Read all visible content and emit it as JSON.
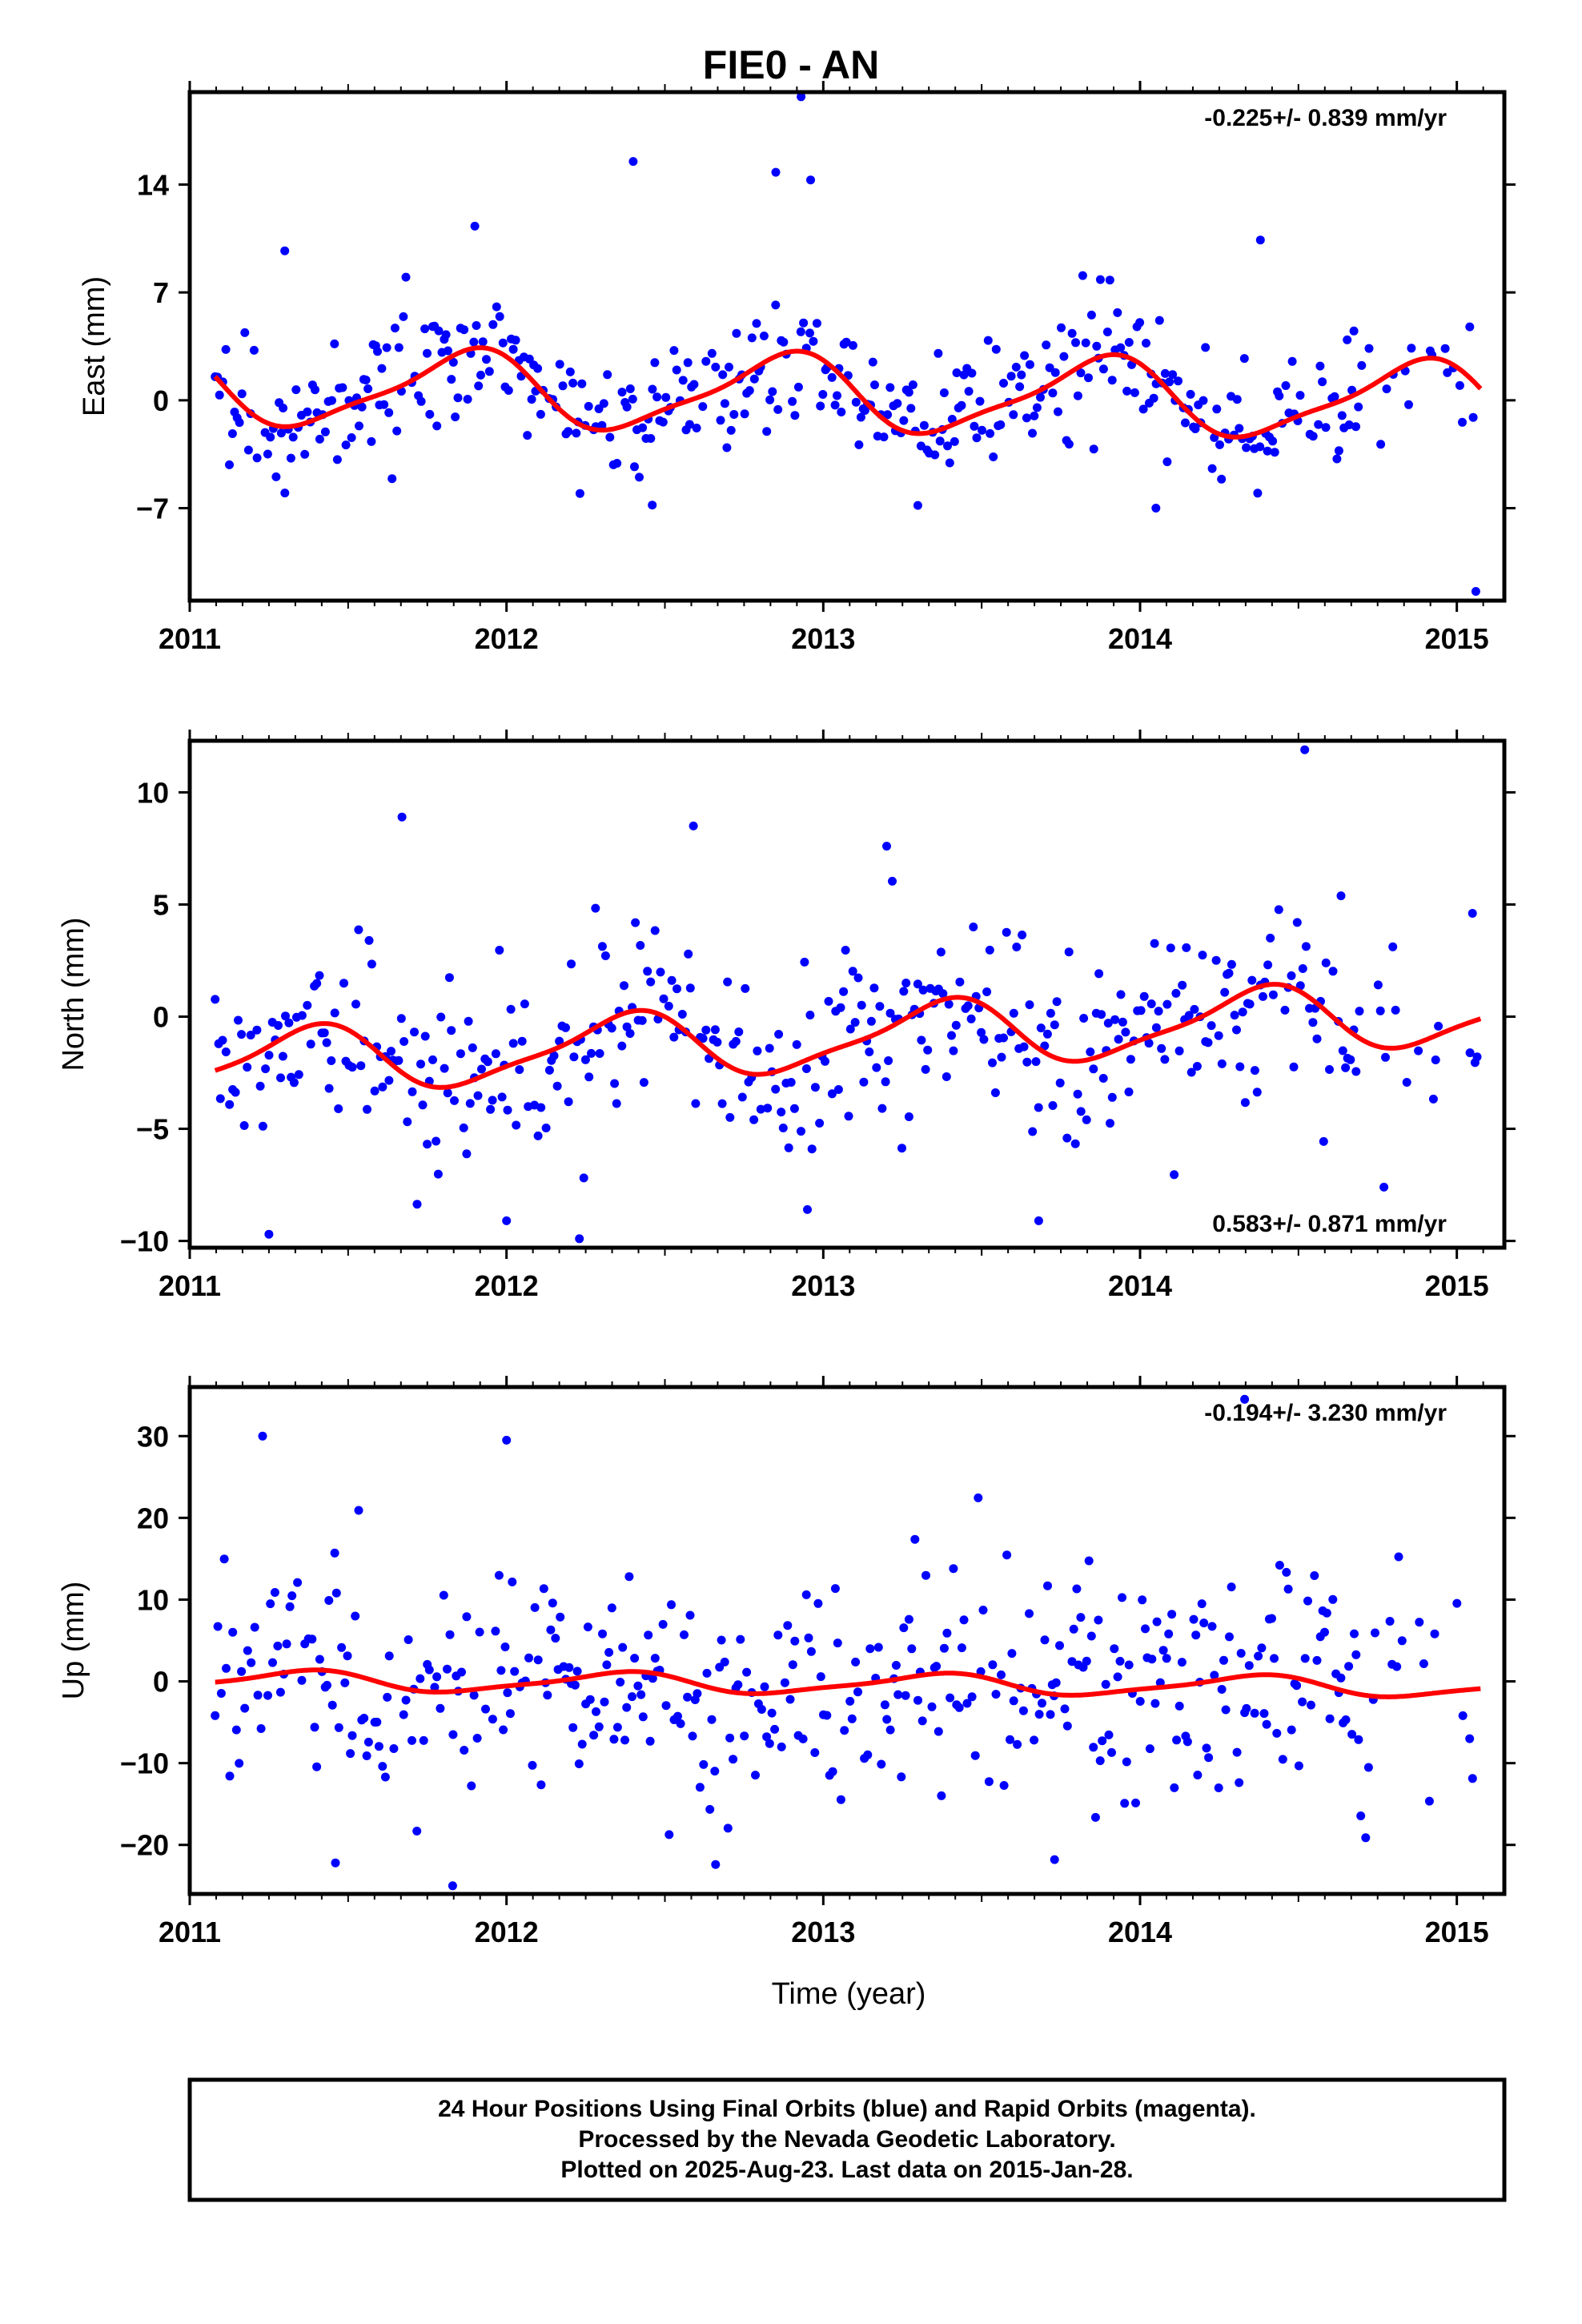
{
  "title": "FIE0 - AN",
  "xlabel": "Time (year)",
  "footer": {
    "line1": "24 Hour Positions Using Final Orbits (blue) and Rapid Orbits (magenta).",
    "line2": "Processed by the Nevada Geodetic Laboratory.",
    "line3": "Plotted on 2025-Aug-23. Last data on 2015-Jan-28."
  },
  "colors": {
    "points": "#0000ff",
    "fit": "#ff0000"
  },
  "chart_data": [
    {
      "type": "scatter",
      "ylabel": "East (mm)",
      "rate": "-0.225+/- 0.839 mm/yr",
      "xlim": [
        2011.0,
        2015.15
      ],
      "ylim": [
        -13,
        20
      ],
      "yticks": [
        -7,
        0,
        7,
        14
      ],
      "xticks": [
        2011,
        2012,
        2013,
        2014,
        2015
      ],
      "fit": {
        "mean": 0.4,
        "trend": -0.225,
        "amplitude": 2.4,
        "peak_phase": 0.87
      },
      "noise_sd": 2.8,
      "outliers": [
        [
          2011.9,
          11.3
        ],
        [
          2012.4,
          15.5
        ],
        [
          2012.85,
          14.8
        ],
        [
          2012.93,
          19.7
        ],
        [
          2012.96,
          14.3
        ],
        [
          2014.38,
          10.4
        ],
        [
          2014.05,
          -7.0
        ],
        [
          2015.06,
          -12.4
        ],
        [
          2011.3,
          9.7
        ],
        [
          2012.46,
          -6.8
        ]
      ]
    },
    {
      "type": "scatter",
      "ylabel": "North (mm)",
      "rate": "0.583+/- 0.871 mm/yr",
      "xlim": [
        2011.0,
        2015.15
      ],
      "ylim": [
        -10.3,
        12.3
      ],
      "yticks": [
        -10,
        -5,
        0,
        5,
        10
      ],
      "xticks": [
        2011,
        2012,
        2013,
        2014,
        2015
      ],
      "fit": {
        "mean": -1.0,
        "trend": 0.583,
        "amplitude": 1.4,
        "peak_phase": 0.37
      },
      "noise_sd": 2.6,
      "outliers": [
        [
          2011.67,
          8.9
        ],
        [
          2011.25,
          -9.7
        ],
        [
          2012.0,
          -9.1
        ],
        [
          2012.23,
          -9.9
        ],
        [
          2012.59,
          8.5
        ],
        [
          2012.95,
          -8.6
        ],
        [
          2013.68,
          -9.1
        ],
        [
          2014.52,
          11.9
        ],
        [
          2014.77,
          -7.6
        ],
        [
          2013.2,
          7.6
        ]
      ]
    },
    {
      "type": "scatter",
      "ylabel": "Up (mm)",
      "rate": "-0.194+/- 3.230 mm/yr",
      "xlim": [
        2011.0,
        2015.15
      ],
      "ylim": [
        -26,
        36
      ],
      "yticks": [
        -20,
        -10,
        0,
        10,
        20,
        30
      ],
      "xticks": [
        2011,
        2012,
        2013,
        2014,
        2015
      ],
      "fit": {
        "mean": -0.3,
        "trend": -0.194,
        "amplitude": 1.2,
        "peak_phase": 0.35
      },
      "noise_sd": 9.5,
      "outliers": [
        [
          2011.23,
          30.0
        ],
        [
          2012.0,
          29.5
        ],
        [
          2014.33,
          34.5
        ],
        [
          2011.83,
          -25.0
        ],
        [
          2011.46,
          -22.2
        ],
        [
          2012.66,
          -22.4
        ],
        [
          2013.73,
          -21.8
        ]
      ]
    }
  ]
}
